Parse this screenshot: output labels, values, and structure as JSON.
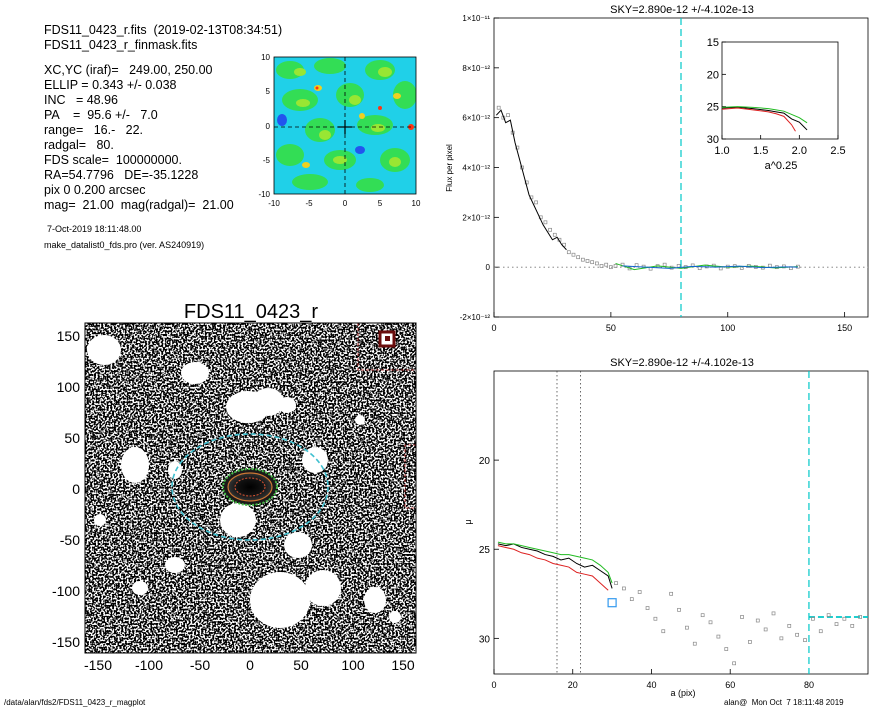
{
  "info_panel": {
    "header_lines": [
      "FDS11_0423_r.fits  (2019-02-13T08:34:51)",
      "FDS11_0423_r_finmask.fits"
    ],
    "param_lines": [
      "XC,YC (iraf)=   249.00, 250.00",
      "ELLIP = 0.343 +/- 0.038",
      "INC   = 48.96",
      "PA    =  95.6 +/-   7.0",
      "range=   16.-   22.",
      "radgal=   80.",
      "FDS scale=  100000000.",
      "RA=54.7796   DE=-35.1228",
      "pix 0 0.200 arcsec",
      "mag=  21.00  mag(radgal)=  21.00"
    ],
    "date_line": "7-Oct-2019 18:11:48.00",
    "program_line": "make_datalist0_fds.pro (ver. AS240919)"
  },
  "footer": {
    "left": "/data/alan/fds2/FDS11_0423_r_magplot",
    "right": "alan@  Mon Oct  7 18:11:48 2019"
  },
  "colors": {
    "sky_line": "#00c8c8",
    "green": "#22bb22",
    "red": "#dd2222",
    "black": "#000000",
    "marker": "#3399ee"
  },
  "chart_data": [
    {
      "name": "center_map",
      "type": "heatmap",
      "xlim": [
        -10,
        10
      ],
      "ylim": [
        -10,
        10
      ],
      "xticks": [
        "-10",
        "-5",
        "0",
        "5",
        "10"
      ],
      "yticks": [
        "10",
        "5",
        "0",
        "-5",
        "-10"
      ]
    },
    {
      "name": "galaxy_image",
      "type": "image",
      "title": "FDS11_0423_r",
      "xlim": [
        -160,
        160
      ],
      "ylim": [
        -160,
        160
      ],
      "xticks": [
        "-150",
        "-100",
        "-50",
        "0",
        "50",
        "100",
        "150"
      ],
      "yticks": [
        "150",
        "100",
        "50",
        "0",
        "-50",
        "-100",
        "-150"
      ],
      "ellipse_semi_major": 80,
      "ellip": 0.343
    },
    {
      "name": "flux_profile",
      "type": "line",
      "title": "SKY=2.890e-12 +/-4.102e-13",
      "ylabel": "Flux per pixel",
      "xlim": [
        0,
        160
      ],
      "ylim": [
        -2e-12,
        1e-11
      ],
      "xticks": [
        "0",
        "50",
        "100",
        "150"
      ],
      "yticks": [
        "-2×10⁻¹²",
        "0",
        "2×10⁻¹²",
        "4×10⁻¹²",
        "6×10⁻¹²",
        "8×10⁻¹²",
        "1×10⁻¹¹"
      ],
      "sky_radius": 80,
      "black_line": {
        "x": [
          1,
          3,
          5,
          7,
          9,
          11,
          13,
          15,
          17,
          19,
          21,
          23,
          25,
          27,
          29,
          31
        ],
        "y": [
          6.1e-12,
          6.3e-12,
          5.8e-12,
          5.9e-12,
          5e-12,
          4.3e-12,
          3.6e-12,
          2.9e-12,
          2.5e-12,
          2.1e-12,
          1.7e-12,
          1.4e-12,
          1.1e-12,
          1.2e-12,
          9e-13,
          7e-13
        ]
      },
      "scatter_points": {
        "x": [
          2,
          4,
          6,
          8,
          10,
          12,
          14,
          16,
          18,
          20,
          22,
          24,
          26,
          28,
          30,
          32,
          34,
          36,
          38,
          40,
          42,
          44,
          46,
          48,
          50,
          52,
          55,
          58,
          61,
          64,
          67,
          70,
          73,
          76,
          79,
          82,
          85,
          88,
          91,
          94,
          97,
          100,
          103,
          106,
          109,
          112,
          115,
          118,
          121,
          124,
          127,
          130
        ],
        "y": [
          6.4e-12,
          6e-12,
          6.1e-12,
          5.4e-12,
          4.8e-12,
          4e-12,
          3.4e-12,
          2.8e-12,
          2.6e-12,
          2e-12,
          1.8e-12,
          1.5e-12,
          1.3e-12,
          1.1e-12,
          9e-13,
          6e-13,
          5e-13,
          4e-13,
          3e-13,
          2.5e-13,
          2e-13,
          1.5e-13,
          5e-14,
          1e-13,
          0.0,
          5e-14,
          1e-13,
          -5e-14,
          8e-14,
          2e-14,
          -6e-14,
          4e-14,
          1e-13,
          -2e-14,
          5e-14,
          0.0,
          7e-14,
          -4e-14,
          3e-14,
          6e-14,
          -5e-14,
          2e-14,
          4e-14,
          -3e-14,
          5e-14,
          1e-14,
          -2e-14,
          6e-14,
          0.0,
          3e-14,
          -4e-14,
          2e-14
        ]
      },
      "green_segment": {
        "x": [
          52,
          60,
          70,
          80,
          90,
          100,
          110,
          120,
          130
        ],
        "y": [
          1.5e-13,
          -1e-13,
          5e-14,
          -5e-14,
          8e-14,
          0.0,
          4e-14,
          -3e-14,
          2e-14
        ]
      },
      "blue_segment": {
        "x": [
          55,
          65,
          75,
          85,
          95,
          105,
          115,
          125,
          130
        ],
        "y": [
          5e-14,
          0.0,
          -5e-14,
          3e-14,
          0.0,
          4e-14,
          -2e-14,
          1e-14,
          0.0
        ]
      },
      "inset": {
        "xlabel": "a^0.25",
        "xlim": [
          1.0,
          2.5
        ],
        "ylim": [
          30,
          15
        ],
        "xticks": [
          "1.0",
          "1.5",
          "2.0",
          "2.5"
        ],
        "yticks": [
          "15",
          "20",
          "25",
          "30"
        ],
        "series": [
          {
            "name": "black",
            "x": [
              1.0,
              1.2,
              1.4,
              1.6,
              1.7,
              1.8,
              1.9,
              2.0,
              2.1
            ],
            "y": [
              25.2,
              25.1,
              25.3,
              25.6,
              25.8,
              26.0,
              26.9,
              27.4,
              28.6
            ]
          },
          {
            "name": "red",
            "x": [
              1.0,
              1.2,
              1.4,
              1.6,
              1.7,
              1.8,
              1.9,
              1.95
            ],
            "y": [
              25.4,
              25.2,
              25.5,
              25.8,
              26.1,
              26.5,
              27.8,
              28.8
            ]
          },
          {
            "name": "green",
            "x": [
              1.0,
              1.2,
              1.4,
              1.6,
              1.7,
              1.8,
              1.9,
              2.0,
              2.1
            ],
            "y": [
              25.1,
              25.0,
              25.1,
              25.3,
              25.5,
              25.7,
              26.2,
              26.7,
              27.5
            ]
          }
        ]
      }
    },
    {
      "name": "surface_brightness_profile",
      "type": "line",
      "title": "SKY=2.890e-12 +/-4.102e-13",
      "xlabel": "a (pix)",
      "ylabel": "μ",
      "xlim": [
        0,
        95
      ],
      "ylim": [
        32,
        15
      ],
      "xticks": [
        "0",
        "20",
        "40",
        "60",
        "80"
      ],
      "yticks": [
        "20",
        "25",
        "30"
      ],
      "fit_range": [
        16,
        22
      ],
      "sky_radius": 80,
      "series": [
        {
          "name": "black",
          "x": [
            1,
            3,
            5,
            7,
            9,
            11,
            13,
            15,
            17,
            19,
            21,
            23,
            25,
            27,
            29,
            30
          ],
          "y": [
            24.7,
            24.8,
            24.7,
            24.9,
            25.0,
            25.1,
            25.3,
            25.4,
            25.6,
            25.5,
            25.8,
            26.0,
            25.9,
            26.2,
            26.5,
            27.2
          ]
        },
        {
          "name": "red",
          "x": [
            1,
            3,
            5,
            7,
            9,
            11,
            13,
            15,
            17,
            19,
            21,
            23,
            25,
            27,
            29
          ],
          "y": [
            24.8,
            24.9,
            25.0,
            25.2,
            25.3,
            25.5,
            25.6,
            25.8,
            25.9,
            26.0,
            26.3,
            26.4,
            26.5,
            26.9,
            27.3
          ]
        },
        {
          "name": "green",
          "x": [
            1,
            3,
            5,
            7,
            9,
            11,
            13,
            15,
            17,
            19,
            21,
            23,
            25,
            27,
            29,
            30
          ],
          "y": [
            24.6,
            24.7,
            24.7,
            24.8,
            24.9,
            25.0,
            25.1,
            25.2,
            25.3,
            25.3,
            25.4,
            25.5,
            25.6,
            25.9,
            26.3,
            26.9
          ]
        }
      ],
      "marker": {
        "x": 30,
        "y": 28.0
      },
      "scatter_points": {
        "x": [
          31,
          33,
          35,
          37,
          39,
          41,
          43,
          45,
          47,
          49,
          51,
          53,
          55,
          57,
          59,
          61,
          63,
          65,
          67,
          69,
          71,
          73,
          75,
          77,
          79,
          81,
          83,
          85,
          87,
          89,
          91,
          93
        ],
        "y": [
          26.9,
          27.2,
          27.8,
          27.4,
          28.3,
          28.9,
          29.6,
          27.5,
          28.4,
          29.4,
          30.3,
          28.7,
          29.1,
          29.9,
          30.6,
          31.4,
          28.8,
          30.2,
          29.0,
          29.5,
          28.6,
          30.0,
          29.3,
          29.8,
          30.1,
          28.9,
          29.6,
          28.7,
          29.2,
          28.9,
          29.3,
          28.8
        ]
      },
      "sky_segment": {
        "x": [
          80,
          95
        ],
        "y": [
          28.8,
          28.8
        ]
      }
    }
  ]
}
